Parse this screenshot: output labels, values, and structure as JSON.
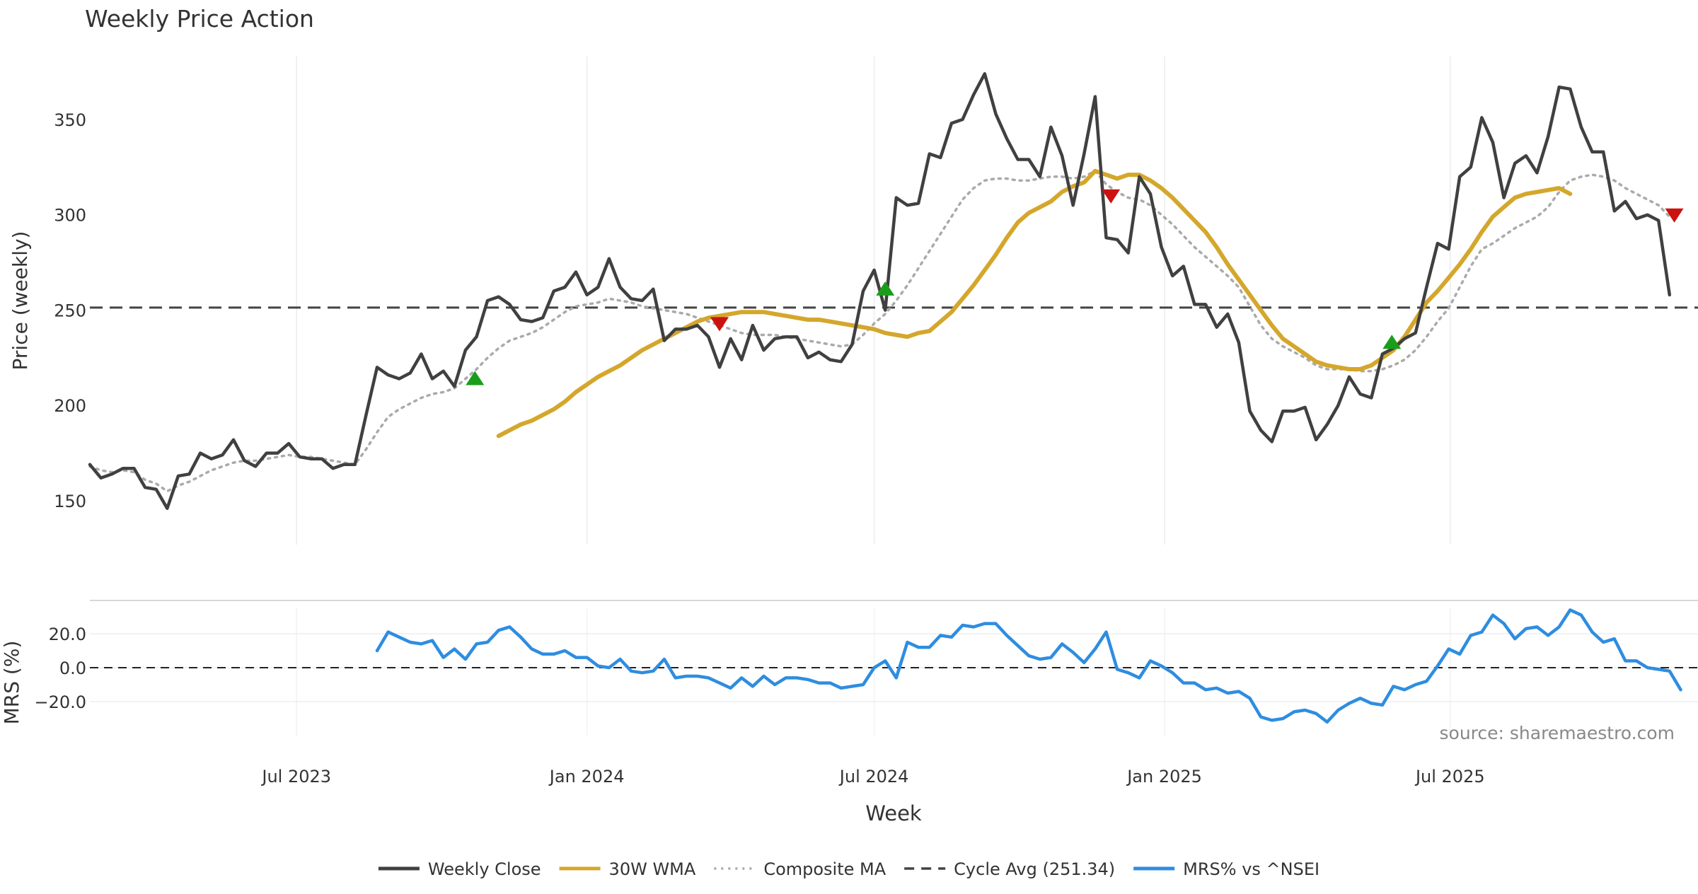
{
  "title": "Weekly Price Action",
  "source": "source: sharemaestro.com",
  "colors": {
    "weekly_close": "#404040",
    "wma": "#d4a72c",
    "composite_ma": "#aaaaaa",
    "cycle_avg": "#444444",
    "mrs": "#2e8de0",
    "buy_marker": "#1a9e1a",
    "sell_marker": "#cc1111"
  },
  "chart_data": [
    {
      "type": "line",
      "panel": "price",
      "ylabel": "Price (weekly)",
      "xlabel": "Week",
      "ylim": [
        127,
        383
      ],
      "yticks": [
        150,
        200,
        250,
        300,
        350
      ],
      "xlim": [
        "2023-02-20",
        "2025-12-05"
      ],
      "xticks": [
        {
          "date": "2023-07-01",
          "label": "Jul 2023"
        },
        {
          "date": "2024-01-01",
          "label": "Jan 2024"
        },
        {
          "date": "2024-07-01",
          "label": "Jul 2024"
        },
        {
          "date": "2025-01-01",
          "label": "Jan 2025"
        },
        {
          "date": "2025-07-01",
          "label": "Jul 2025"
        }
      ],
      "x_start": "2023-02-20",
      "x_step_days": 7,
      "series": [
        {
          "name": "Weekly Close",
          "style": "solid",
          "offset": 0,
          "values": [
            169,
            162,
            164,
            167,
            167,
            157,
            156,
            146,
            163,
            164,
            175,
            172,
            174,
            182,
            171,
            168,
            175,
            175,
            180,
            173,
            172,
            172,
            167,
            169,
            169,
            195,
            220,
            216,
            214,
            217,
            227,
            214,
            218,
            210,
            229,
            236,
            255,
            257,
            253,
            245,
            244,
            246,
            260,
            262,
            270,
            258,
            262,
            277,
            262,
            256,
            255,
            261,
            234,
            240,
            240,
            242,
            236,
            220,
            235,
            224,
            242,
            229,
            235,
            236,
            236,
            225,
            228,
            224,
            223,
            232,
            260,
            271,
            250,
            309,
            305,
            306,
            332,
            330,
            348,
            350,
            363,
            374,
            353,
            340,
            329,
            329,
            320,
            346,
            331,
            305,
            332,
            362,
            288,
            287,
            280,
            320,
            311,
            283,
            268,
            273,
            253,
            253,
            241,
            248,
            233,
            197,
            187,
            181,
            197,
            197,
            199,
            182,
            190,
            200,
            215,
            206,
            204,
            227,
            230,
            235,
            238,
            262,
            285,
            282,
            320,
            325,
            351,
            338,
            309,
            327,
            331,
            322,
            341,
            367,
            366,
            346,
            333,
            333,
            302,
            307,
            298,
            300,
            297,
            258
          ]
        },
        {
          "name": "30W WMA",
          "style": "solid",
          "offset": 37,
          "values": [
            184,
            187,
            190,
            192,
            195,
            198,
            202,
            207,
            211,
            215,
            218,
            221,
            225,
            229,
            232,
            235,
            238,
            241,
            244,
            246,
            247,
            248,
            249,
            249,
            249,
            248,
            247,
            246,
            245,
            245,
            244,
            243,
            242,
            241,
            240,
            238,
            237,
            236,
            238,
            239,
            244,
            249,
            256,
            263,
            271,
            279,
            288,
            296,
            301,
            304,
            307,
            312,
            315,
            317,
            323,
            321,
            319,
            321,
            321,
            318,
            314,
            309,
            303,
            297,
            291,
            283,
            274,
            266,
            258,
            250,
            242,
            235,
            231,
            227,
            223,
            221,
            220,
            219,
            219,
            221,
            225,
            229,
            236,
            245,
            254,
            260,
            267,
            274,
            282,
            291,
            299,
            304,
            309,
            311,
            312,
            313,
            314,
            311
          ]
        },
        {
          "name": "Composite MA",
          "style": "dotted",
          "offset": 0,
          "values": [
            168,
            166,
            165,
            166,
            165,
            161,
            159,
            155,
            158,
            160,
            163,
            166,
            168,
            170,
            171,
            171,
            172,
            173,
            174,
            173,
            173,
            172,
            171,
            170,
            169,
            177,
            186,
            194,
            198,
            201,
            204,
            206,
            207,
            209,
            214,
            219,
            225,
            230,
            234,
            236,
            238,
            241,
            245,
            249,
            252,
            253,
            254,
            256,
            255,
            254,
            252,
            251,
            250,
            249,
            248,
            246,
            244,
            242,
            240,
            238,
            237,
            237,
            237,
            236,
            235,
            234,
            233,
            232,
            231,
            232,
            237,
            243,
            248,
            255,
            263,
            272,
            281,
            290,
            299,
            308,
            314,
            318,
            319,
            319,
            318,
            318,
            319,
            320,
            320,
            319,
            320,
            323,
            316,
            312,
            309,
            308,
            305,
            300,
            295,
            289,
            283,
            278,
            273,
            268,
            262,
            252,
            242,
            235,
            231,
            228,
            225,
            221,
            219,
            219,
            219,
            218,
            218,
            219,
            221,
            224,
            229,
            236,
            244,
            251,
            262,
            273,
            282,
            285,
            289,
            293,
            296,
            299,
            304,
            312,
            318,
            320,
            321,
            320,
            318,
            314,
            311,
            308,
            305,
            299
          ]
        },
        {
          "name": "Cycle Avg (251.34)",
          "style": "dashed",
          "constant": 251.34
        }
      ],
      "markers": [
        {
          "type": "buy",
          "date": "2023-10-22",
          "value": 214
        },
        {
          "type": "sell",
          "date": "2024-03-25",
          "value": 243
        },
        {
          "type": "buy",
          "date": "2024-07-08",
          "value": 261
        },
        {
          "type": "sell",
          "date": "2024-11-28",
          "value": 310
        },
        {
          "type": "buy",
          "date": "2025-05-25",
          "value": 233
        },
        {
          "type": "sell",
          "date": "2025-11-20",
          "value": 300
        }
      ]
    },
    {
      "type": "line",
      "panel": "mrs",
      "ylabel": "MRS (%)",
      "ylim": [
        -40,
        35
      ],
      "yticks": [
        {
          "value": 20,
          "label": "20.0"
        },
        {
          "value": 0,
          "label": "0.0"
        },
        {
          "value": -20,
          "label": "−20.0"
        }
      ],
      "zero_line": true,
      "x_start": "2023-08-21",
      "x_step_days": 7,
      "series": [
        {
          "name": "MRS% vs ^NSEI",
          "style": "solid",
          "values": [
            10,
            21,
            18,
            15,
            14,
            16,
            6,
            11,
            5,
            14,
            15,
            22,
            24,
            18,
            11,
            8,
            8,
            10,
            6,
            6,
            1,
            0,
            5,
            -2,
            -3,
            -2,
            5,
            -6,
            -5,
            -5,
            -6,
            -9,
            -12,
            -6,
            -11,
            -5,
            -10,
            -6,
            -6,
            -7,
            -9,
            -9,
            -12,
            -11,
            -10,
            0,
            4,
            -6,
            15,
            12,
            12,
            19,
            18,
            25,
            24,
            26,
            26,
            19,
            13,
            7,
            5,
            6,
            14,
            9,
            3,
            11,
            21,
            -1,
            -3,
            -6,
            4,
            1,
            -3,
            -9,
            -9,
            -13,
            -12,
            -15,
            -14,
            -18,
            -29,
            -31,
            -30,
            -26,
            -25,
            -27,
            -32,
            -25,
            -21,
            -18,
            -21,
            -22,
            -11,
            -13,
            -10,
            -8,
            1,
            11,
            8,
            19,
            21,
            31,
            26,
            17,
            23,
            24,
            19,
            24,
            34,
            31,
            21,
            15,
            17,
            4,
            4,
            0,
            -1,
            -2,
            -13
          ]
        }
      ]
    }
  ],
  "legend": [
    {
      "label": "Weekly Close",
      "style": "solid",
      "color": "#404040"
    },
    {
      "label": "30W WMA",
      "style": "solid",
      "color": "#d4a72c"
    },
    {
      "label": "Composite MA",
      "style": "dotted",
      "color": "#aaaaaa"
    },
    {
      "label": "Cycle Avg (251.34)",
      "style": "dashed",
      "color": "#444444"
    },
    {
      "label": "MRS% vs ^NSEI",
      "style": "solid",
      "color": "#2e8de0"
    }
  ]
}
